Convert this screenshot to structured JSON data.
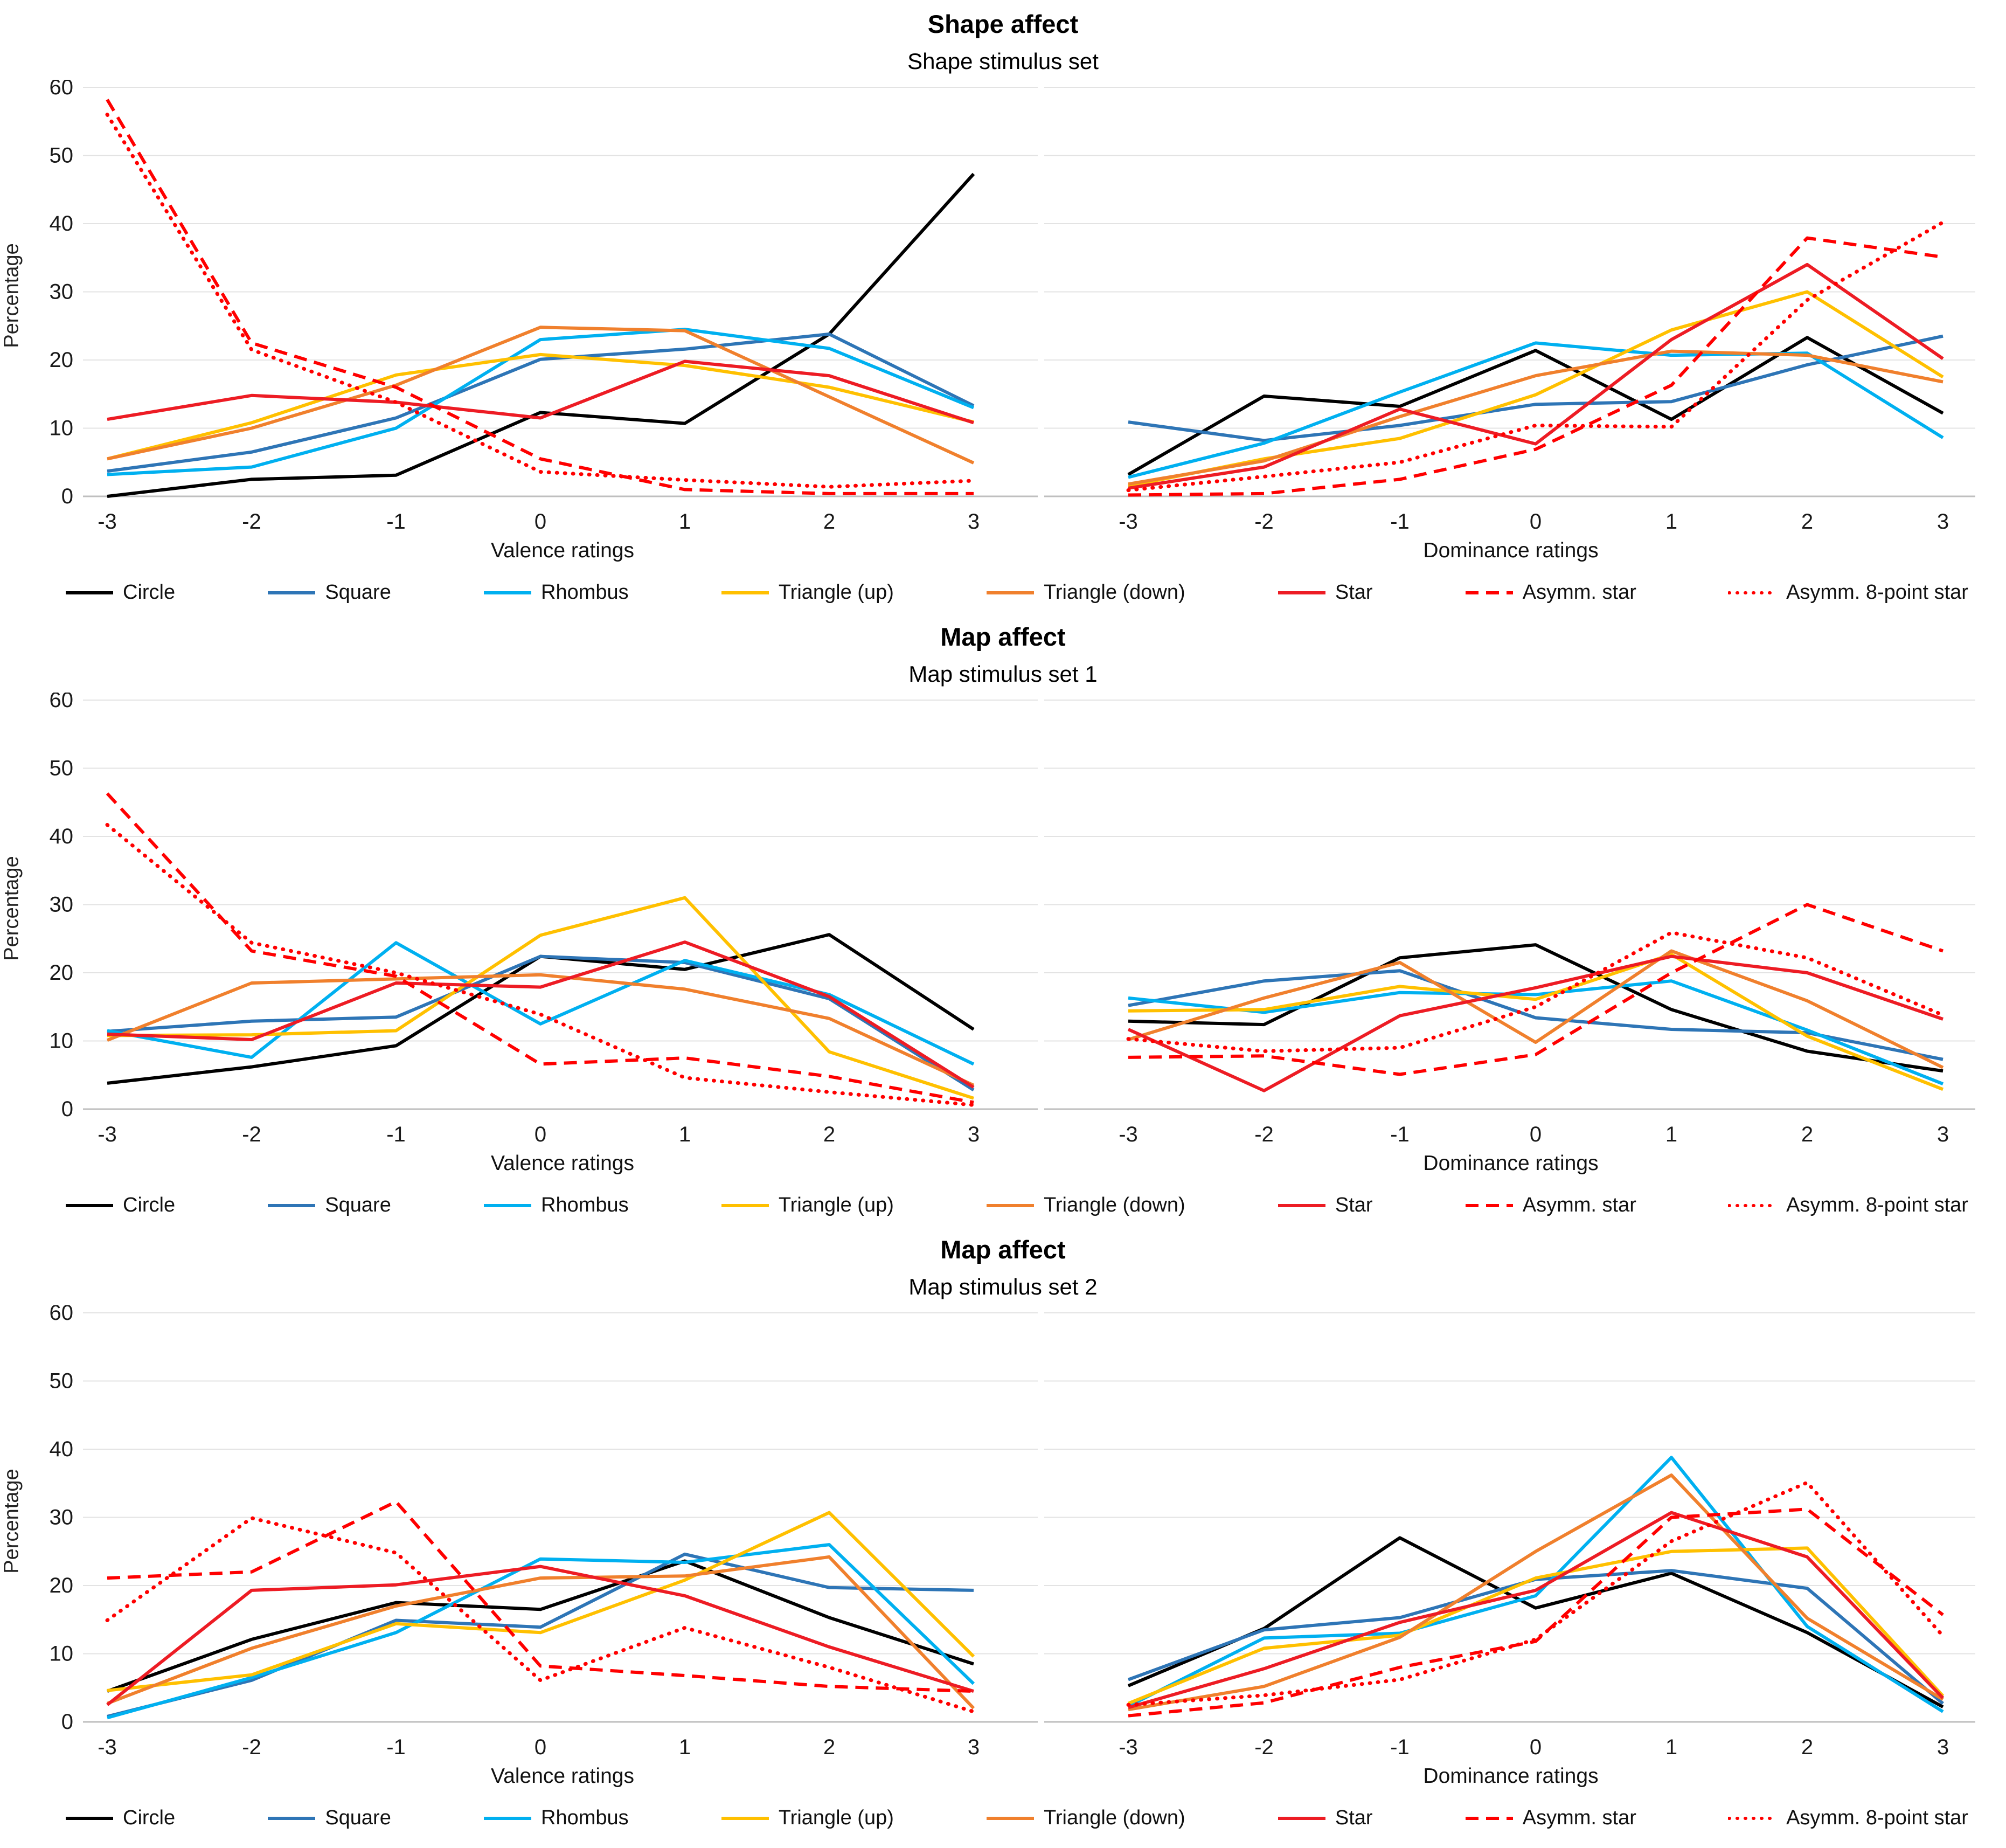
{
  "figure": {
    "y_axis_label": "Percentage",
    "x_tick_labels": [
      "-3",
      "-2",
      "-1",
      "0",
      "1",
      "2",
      "3"
    ],
    "y_tick_labels": [
      "0",
      "10",
      "20",
      "30",
      "40",
      "50",
      "60"
    ],
    "grid_color": "#e3e3e3",
    "axis_color": "#bfbfbf",
    "legend": [
      {
        "label": "Circle",
        "color": "#000000",
        "style": "solid"
      },
      {
        "label": "Square",
        "color": "#2e75b6",
        "style": "solid"
      },
      {
        "label": "Rhombus",
        "color": "#00b0f0",
        "style": "solid"
      },
      {
        "label": "Triangle (up)",
        "color": "#ffc000",
        "style": "solid"
      },
      {
        "label": "Triangle (down)",
        "color": "#f0802d",
        "style": "solid"
      },
      {
        "label": "Star",
        "color": "#ed1c24",
        "style": "solid"
      },
      {
        "label": "Asymm. star",
        "color": "#ff0000",
        "style": "dashed"
      },
      {
        "label": "Asymm. 8-point star",
        "color": "#ff0000",
        "style": "dotted"
      }
    ]
  },
  "rows": [
    {
      "title": "Shape affect",
      "subtitle": "Shape stimulus set"
    },
    {
      "title": "Map affect",
      "subtitle": "Map stimulus set 1"
    },
    {
      "title": "Map affect",
      "subtitle": "Map stimulus set 2"
    }
  ],
  "chart_data": [
    {
      "type": "line",
      "panel": "Shape affect",
      "subtitle": "Shape stimulus set",
      "xlabel": "Valence ratings",
      "ylabel": "Percentage",
      "x": [
        -3,
        -2,
        -1,
        0,
        1,
        2,
        3
      ],
      "ylim": [
        0,
        60
      ],
      "ytick_step": 10,
      "grid": true,
      "y_tick_labels_visible": true,
      "legend_position": "bottom",
      "series": [
        {
          "name": "Circle",
          "values": [
            0.0,
            2.5,
            3.1,
            12.3,
            10.7,
            23.8,
            47.3
          ]
        },
        {
          "name": "Square",
          "values": [
            3.7,
            6.5,
            11.5,
            20.1,
            21.6,
            23.8,
            13.3
          ]
        },
        {
          "name": "Rhombus",
          "values": [
            3.2,
            4.3,
            10.0,
            23.0,
            24.5,
            21.7,
            13.0
          ]
        },
        {
          "name": "Triangle (up)",
          "values": [
            5.5,
            10.8,
            17.8,
            20.8,
            19.2,
            16.0,
            10.9
          ]
        },
        {
          "name": "Triangle (down)",
          "values": [
            5.5,
            10.0,
            16.3,
            24.8,
            24.3,
            14.6,
            4.9
          ]
        },
        {
          "name": "Star",
          "values": [
            11.3,
            14.8,
            13.8,
            11.5,
            19.8,
            17.7,
            10.8
          ]
        },
        {
          "name": "Asymm. star",
          "values": [
            58.2,
            22.5,
            16.0,
            5.5,
            1.0,
            0.4,
            0.4
          ]
        },
        {
          "name": "Asymm. 8-point star",
          "values": [
            56.0,
            21.5,
            13.8,
            3.6,
            2.4,
            1.4,
            2.3
          ]
        }
      ]
    },
    {
      "type": "line",
      "panel": "Shape affect",
      "subtitle": "Shape stimulus set",
      "xlabel": "Dominance ratings",
      "ylabel": "Percentage",
      "x": [
        -3,
        -2,
        -1,
        0,
        1,
        2,
        3
      ],
      "ylim": [
        0,
        60
      ],
      "ytick_step": 10,
      "grid": true,
      "y_tick_labels_visible": false,
      "legend_position": "bottom",
      "series": [
        {
          "name": "Circle",
          "values": [
            3.2,
            14.7,
            13.2,
            21.4,
            11.3,
            23.3,
            12.2
          ]
        },
        {
          "name": "Square",
          "values": [
            10.9,
            8.2,
            10.4,
            13.5,
            13.9,
            19.3,
            23.5
          ]
        },
        {
          "name": "Rhombus",
          "values": [
            2.8,
            7.8,
            15.3,
            22.5,
            20.7,
            21.0,
            8.6
          ]
        },
        {
          "name": "Triangle (up)",
          "values": [
            1.5,
            5.5,
            8.5,
            14.9,
            24.4,
            30.0,
            17.5
          ]
        },
        {
          "name": "Triangle (down)",
          "values": [
            1.8,
            5.2,
            11.7,
            17.7,
            21.3,
            20.7,
            16.8
          ]
        },
        {
          "name": "Star",
          "values": [
            1.2,
            4.3,
            12.8,
            7.7,
            23.0,
            34.0,
            20.2
          ]
        },
        {
          "name": "Asymm. star",
          "values": [
            0.2,
            0.4,
            2.5,
            6.9,
            16.3,
            37.9,
            35.1
          ]
        },
        {
          "name": "Asymm. 8-point star",
          "values": [
            0.9,
            2.9,
            5.0,
            10.4,
            10.2,
            28.8,
            40.2
          ]
        }
      ]
    },
    {
      "type": "line",
      "panel": "Map affect",
      "subtitle": "Map stimulus set 1",
      "xlabel": "Valence ratings",
      "ylabel": "Percentage",
      "x": [
        -3,
        -2,
        -1,
        0,
        1,
        2,
        3
      ],
      "ylim": [
        0,
        60
      ],
      "ytick_step": 10,
      "grid": true,
      "y_tick_labels_visible": true,
      "legend_position": "bottom",
      "series": [
        {
          "name": "Circle",
          "values": [
            3.8,
            6.2,
            9.3,
            22.4,
            20.5,
            25.6,
            11.7
          ]
        },
        {
          "name": "Square",
          "values": [
            11.4,
            12.9,
            13.5,
            22.4,
            21.5,
            16.2,
            2.8
          ]
        },
        {
          "name": "Rhombus",
          "values": [
            11.5,
            7.6,
            24.4,
            12.5,
            21.8,
            16.8,
            6.6
          ]
        },
        {
          "name": "Triangle (up)",
          "values": [
            10.8,
            10.9,
            11.5,
            25.5,
            31.0,
            8.4,
            1.6
          ]
        },
        {
          "name": "Triangle (down)",
          "values": [
            10.1,
            18.5,
            19.1,
            19.7,
            17.6,
            13.3,
            3.5
          ]
        },
        {
          "name": "Star",
          "values": [
            11.0,
            10.2,
            18.5,
            17.9,
            24.5,
            16.5,
            3.2
          ]
        },
        {
          "name": "Asymm. star",
          "values": [
            46.3,
            23.2,
            19.5,
            6.6,
            7.5,
            4.8,
            1.0
          ]
        },
        {
          "name": "Asymm. 8-point star",
          "values": [
            41.7,
            24.4,
            20.0,
            13.9,
            4.6,
            2.5,
            0.6
          ]
        }
      ]
    },
    {
      "type": "line",
      "panel": "Map affect",
      "subtitle": "Map stimulus set 1",
      "xlabel": "Dominance ratings",
      "ylabel": "Percentage",
      "x": [
        -3,
        -2,
        -1,
        0,
        1,
        2,
        3
      ],
      "ylim": [
        0,
        60
      ],
      "ytick_step": 10,
      "grid": true,
      "y_tick_labels_visible": false,
      "legend_position": "bottom",
      "series": [
        {
          "name": "Circle",
          "values": [
            12.9,
            12.4,
            22.2,
            24.1,
            14.6,
            8.5,
            5.6
          ]
        },
        {
          "name": "Square",
          "values": [
            15.2,
            18.8,
            20.3,
            13.4,
            11.7,
            11.2,
            7.3
          ]
        },
        {
          "name": "Rhombus",
          "values": [
            16.3,
            14.2,
            17.1,
            16.8,
            18.8,
            11.6,
            3.7
          ]
        },
        {
          "name": "Triangle (up)",
          "values": [
            14.4,
            14.6,
            18.0,
            16.1,
            22.7,
            10.7,
            2.9
          ]
        },
        {
          "name": "Triangle (down)",
          "values": [
            10.2,
            16.3,
            21.5,
            9.8,
            23.2,
            15.9,
            6.1
          ]
        },
        {
          "name": "Star",
          "values": [
            11.7,
            2.7,
            13.7,
            17.8,
            22.4,
            20.0,
            13.2
          ]
        },
        {
          "name": "Asymm. star",
          "values": [
            7.6,
            7.8,
            5.1,
            8.0,
            20.0,
            30.0,
            23.2
          ]
        },
        {
          "name": "Asymm. 8-point star",
          "values": [
            10.3,
            8.5,
            9.0,
            15.0,
            25.9,
            22.2,
            13.8
          ]
        }
      ]
    },
    {
      "type": "line",
      "panel": "Map affect",
      "subtitle": "Map stimulus set 2",
      "xlabel": "Valence ratings",
      "ylabel": "Percentage",
      "x": [
        -3,
        -2,
        -1,
        0,
        1,
        2,
        3
      ],
      "ylim": [
        0,
        60
      ],
      "ytick_step": 10,
      "grid": true,
      "y_tick_labels_visible": true,
      "legend_position": "bottom",
      "series": [
        {
          "name": "Circle",
          "values": [
            4.5,
            12.1,
            17.5,
            16.5,
            23.6,
            15.3,
            8.5
          ]
        },
        {
          "name": "Square",
          "values": [
            0.8,
            6.1,
            14.9,
            13.9,
            24.6,
            19.7,
            19.3
          ]
        },
        {
          "name": "Rhombus",
          "values": [
            0.6,
            6.5,
            13.1,
            23.9,
            23.4,
            26.0,
            5.6
          ]
        },
        {
          "name": "Triangle (up)",
          "values": [
            4.6,
            6.9,
            14.4,
            13.1,
            20.8,
            30.7,
            9.6
          ]
        },
        {
          "name": "Triangle (down)",
          "values": [
            2.7,
            10.8,
            17.0,
            21.1,
            21.4,
            24.2,
            2.0
          ]
        },
        {
          "name": "Star",
          "values": [
            2.5,
            19.3,
            20.1,
            22.8,
            18.5,
            11.0,
            4.5
          ]
        },
        {
          "name": "Asymm. star",
          "values": [
            21.1,
            22.0,
            32.3,
            8.2,
            6.8,
            5.2,
            4.5
          ]
        },
        {
          "name": "Asymm. 8-point star",
          "values": [
            14.9,
            29.9,
            24.8,
            6.1,
            13.8,
            8.0,
            1.5
          ]
        }
      ]
    },
    {
      "type": "line",
      "panel": "Map affect",
      "subtitle": "Map stimulus set 2",
      "xlabel": "Dominance ratings",
      "ylabel": "Percentage",
      "x": [
        -3,
        -2,
        -1,
        0,
        1,
        2,
        3
      ],
      "ylim": [
        0,
        60
      ],
      "ytick_step": 10,
      "grid": true,
      "y_tick_labels_visible": false,
      "legend_position": "bottom",
      "series": [
        {
          "name": "Circle",
          "values": [
            5.3,
            13.7,
            27.0,
            16.7,
            21.8,
            13.1,
            2.2
          ]
        },
        {
          "name": "Square",
          "values": [
            6.2,
            13.5,
            15.3,
            20.9,
            22.2,
            19.6,
            2.7
          ]
        },
        {
          "name": "Rhombus",
          "values": [
            2.3,
            12.3,
            13.0,
            18.5,
            38.8,
            14.0,
            1.5
          ]
        },
        {
          "name": "Triangle (up)",
          "values": [
            2.7,
            10.8,
            12.7,
            21.1,
            25.0,
            25.5,
            3.8
          ]
        },
        {
          "name": "Triangle (down)",
          "values": [
            1.8,
            5.2,
            12.4,
            25.0,
            36.2,
            15.2,
            3.3
          ]
        },
        {
          "name": "Star",
          "values": [
            2.1,
            7.8,
            14.6,
            19.3,
            30.7,
            24.2,
            3.5
          ]
        },
        {
          "name": "Asymm. star",
          "values": [
            0.9,
            2.8,
            8.0,
            11.8,
            30.0,
            31.2,
            15.7
          ]
        },
        {
          "name": "Asymm. 8-point star",
          "values": [
            2.5,
            3.9,
            6.2,
            12.1,
            26.5,
            35.1,
            12.6
          ]
        }
      ]
    }
  ]
}
